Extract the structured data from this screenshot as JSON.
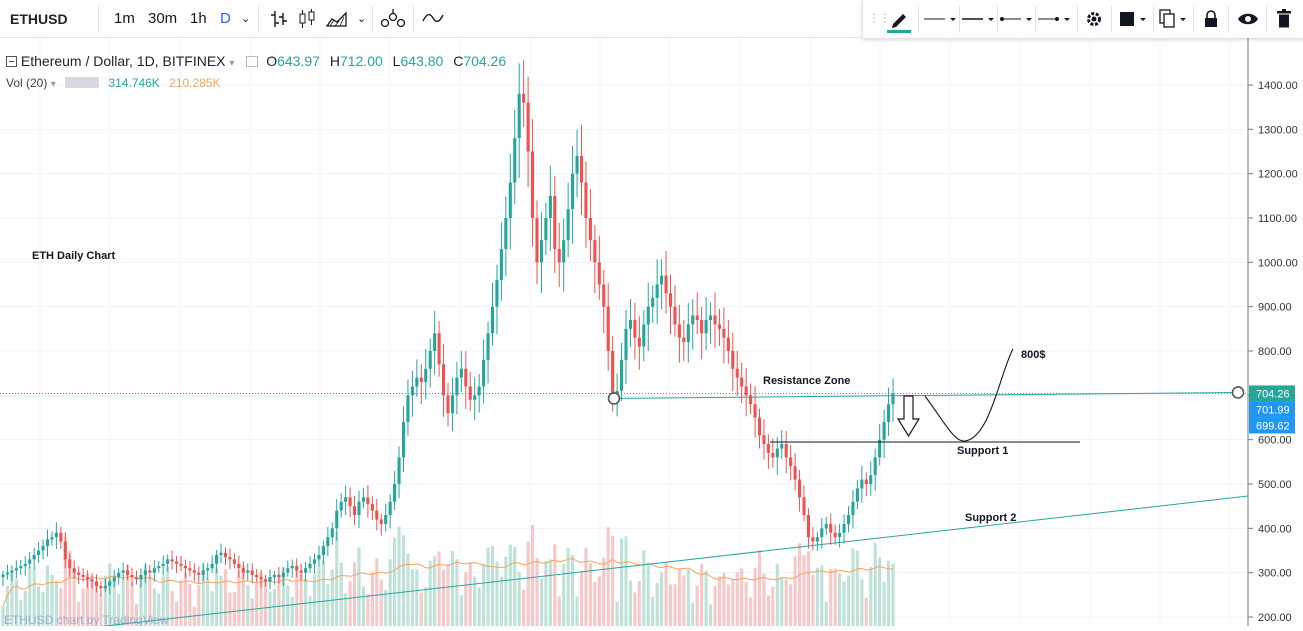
{
  "toolbar": {
    "symbol": "ETHUSD",
    "intervals": [
      "1m",
      "30m",
      "1h",
      "D"
    ],
    "active_interval": "D",
    "chart_type_icons": [
      "bar-chart-icon",
      "candles-icon",
      "area-chart-icon"
    ],
    "indicator_icon": "indicators-icon",
    "compare_icon": "compare-icon"
  },
  "drawing_toolbar": {
    "tools": [
      "pencil-icon",
      "line-style-icon",
      "line-width-icon",
      "line-dots-icon",
      "line-arrow-icon",
      "settings-icon",
      "fill-icon",
      "clone-icon",
      "lock-icon",
      "visibility-icon",
      "trash-icon"
    ],
    "accent_color": "#26a69a"
  },
  "legend": {
    "title": "Ethereum / Dollar, 1D, BITFINEX",
    "open_label": "O",
    "open": "643.97",
    "high_label": "H",
    "high": "712.00",
    "low_label": "L",
    "low": "643.80",
    "close_label": "C",
    "close": "704.26",
    "vol_label": "Vol (20)",
    "vol_value": "314.746K",
    "vol_ma": "210.285K"
  },
  "chart_data": {
    "type": "candlestick",
    "y_axis": {
      "ticks": [
        200,
        300,
        400,
        500,
        600,
        700,
        800,
        900,
        1000,
        1100,
        1200,
        1300,
        1400
      ],
      "range": [
        175,
        1470
      ]
    },
    "price_labels": [
      {
        "value": 704.26,
        "text": "704.26",
        "color": "#26a69a"
      },
      {
        "value": 701.99,
        "text": "701.99",
        "color": "#2196f3"
      },
      {
        "value": 699.62,
        "text": "699.62",
        "color": "#2196f3"
      }
    ],
    "closes": [
      296,
      300,
      305,
      310,
      315,
      320,
      330,
      340,
      350,
      360,
      375,
      380,
      390,
      370,
      330,
      310,
      300,
      295,
      290,
      285,
      280,
      270,
      265,
      270,
      280,
      290,
      300,
      305,
      295,
      290,
      285,
      295,
      305,
      300,
      310,
      315,
      320,
      330,
      325,
      320,
      315,
      310,
      305,
      300,
      295,
      305,
      310,
      320,
      340,
      345,
      335,
      330,
      320,
      310,
      300,
      305,
      295,
      290,
      285,
      280,
      290,
      295,
      290,
      300,
      310,
      315,
      305,
      300,
      310,
      320,
      330,
      340,
      360,
      380,
      400,
      440,
      460,
      470,
      450,
      430,
      460,
      470,
      455,
      440,
      420,
      410,
      430,
      460,
      500,
      560,
      640,
      700,
      720,
      740,
      730,
      760,
      800,
      840,
      770,
      700,
      660,
      700,
      740,
      760,
      720,
      690,
      700,
      720,
      780,
      840,
      900,
      960,
      1030,
      1100,
      1180,
      1280,
      1380,
      1360,
      1250,
      1100,
      1000,
      1050,
      1100,
      1150,
      1030,
      1000,
      1050,
      1120,
      1200,
      1240,
      1180,
      1100,
      1050,
      1000,
      950,
      900,
      800,
      700,
      710,
      780,
      850,
      870,
      830,
      810,
      860,
      900,
      920,
      950,
      970,
      930,
      900,
      860,
      830,
      820,
      860,
      880,
      870,
      840,
      870,
      880,
      860,
      850,
      830,
      800,
      760,
      740,
      720,
      700,
      680,
      650,
      610,
      590,
      570,
      560,
      580,
      590,
      560,
      540,
      510,
      470,
      430,
      380,
      370,
      380,
      400,
      410,
      390,
      380,
      390,
      410,
      430,
      460,
      490,
      510,
      500,
      520,
      560,
      600,
      640,
      680,
      704
    ],
    "annotations": [
      {
        "text": "ETH Daily Chart"
      },
      {
        "text": "Resistance Zone"
      },
      {
        "text": "800$"
      },
      {
        "text": "Support 1"
      },
      {
        "text": "Support 2"
      }
    ],
    "watermark": "ETHUSD chart by TradingView",
    "colors": {
      "up": "#26a69a",
      "down": "#ef5350",
      "vol_up": "#a8d8c8",
      "vol_down": "#f4b6b5",
      "vol_ma": "#f7a35c",
      "trendline": "#26a69a",
      "grid": "#f0f3fa"
    }
  }
}
